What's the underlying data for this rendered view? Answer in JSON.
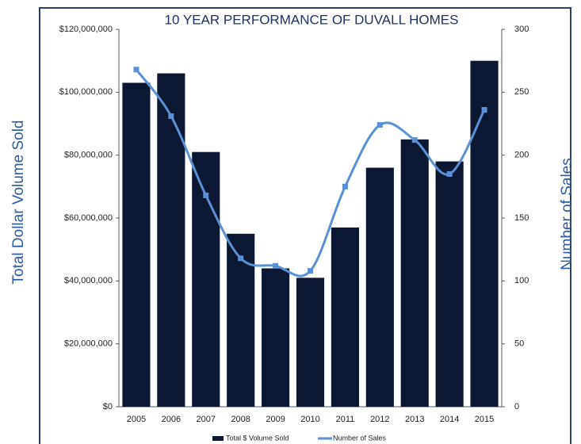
{
  "chart_data": {
    "type": "bar_line",
    "title": "10 YEAR PERFORMANCE OF DUVALL HOMES",
    "y_label": "Total Dollar Volume Sold",
    "y2_label": "Number of Sales",
    "categories": [
      "2005",
      "2006",
      "2007",
      "2008",
      "2009",
      "2010",
      "2011",
      "2012",
      "2013",
      "2014",
      "2015"
    ],
    "series": [
      {
        "name": "Total $ Volume Sold",
        "type": "bar",
        "color": "#0c1831",
        "values": [
          103000000,
          106000000,
          81000000,
          55000000,
          44000000,
          41000000,
          57000000,
          76000000,
          85000000,
          78000000,
          110000000
        ]
      },
      {
        "name": "Number of Sales",
        "type": "line",
        "axis": "y2",
        "color": "#5b8fd6",
        "values": [
          268,
          231,
          168,
          118,
          112,
          108,
          175,
          224,
          212,
          185,
          236
        ]
      }
    ],
    "ylim": [
      0,
      120000000
    ],
    "yticks": [
      {
        "value": 0,
        "label": "$0"
      },
      {
        "value": 20000000,
        "label": "$20,000,000"
      },
      {
        "value": 40000000,
        "label": "$40,000,000"
      },
      {
        "value": 60000000,
        "label": "$60,000,000"
      },
      {
        "value": 80000000,
        "label": "$80,000,000"
      },
      {
        "value": 100000000,
        "label": "$100,000,000"
      },
      {
        "value": 120000000,
        "label": "$120,000,000"
      }
    ],
    "y2lim": [
      0,
      300
    ],
    "y2ticks": [
      0,
      50,
      100,
      150,
      200,
      250,
      300
    ],
    "legend": "bottom"
  }
}
